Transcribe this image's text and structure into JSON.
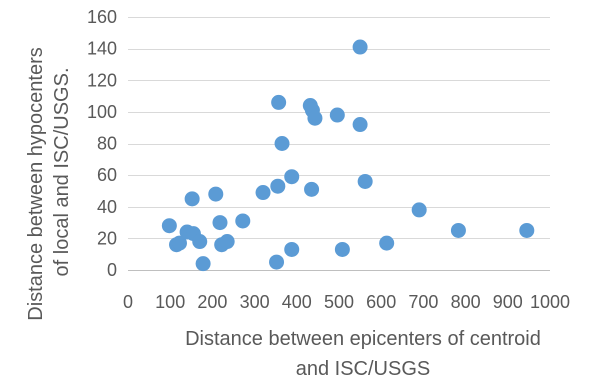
{
  "chart_data": {
    "type": "scatter",
    "title": "",
    "xlabel": [
      "Distance between epicenters of centroid",
      "and ISC/USGS"
    ],
    "ylabel": [
      "Distance between hypocenters",
      "of local and ISC/USGS."
    ],
    "xlim": [
      0,
      1000
    ],
    "ylim": [
      0,
      160
    ],
    "x_ticks": [
      0,
      100,
      200,
      300,
      400,
      500,
      600,
      700,
      800,
      900,
      1000
    ],
    "y_ticks": [
      0,
      20,
      40,
      60,
      80,
      100,
      120,
      140,
      160
    ],
    "x_tick_labels": [
      "0",
      "100",
      "200",
      "300",
      "400",
      "500",
      "600",
      "700",
      "800",
      "900",
      "1000"
    ],
    "y_tick_labels": [
      "0",
      "20",
      "40",
      "60",
      "80",
      "100",
      "120",
      "140",
      "160"
    ],
    "grid": "horizontal",
    "legend": "none",
    "marker_color": "#5b9bd5",
    "series": [
      {
        "points": [
          {
            "x": 98,
            "y": 28
          },
          {
            "x": 115,
            "y": 16
          },
          {
            "x": 122,
            "y": 17
          },
          {
            "x": 140,
            "y": 24
          },
          {
            "x": 152,
            "y": 45
          },
          {
            "x": 155,
            "y": 23
          },
          {
            "x": 170,
            "y": 18
          },
          {
            "x": 178,
            "y": 4
          },
          {
            "x": 208,
            "y": 48
          },
          {
            "x": 218,
            "y": 30
          },
          {
            "x": 222,
            "y": 16
          },
          {
            "x": 235,
            "y": 18
          },
          {
            "x": 272,
            "y": 31
          },
          {
            "x": 320,
            "y": 49
          },
          {
            "x": 352,
            "y": 5
          },
          {
            "x": 355,
            "y": 53
          },
          {
            "x": 357,
            "y": 106
          },
          {
            "x": 365,
            "y": 80
          },
          {
            "x": 388,
            "y": 59
          },
          {
            "x": 388,
            "y": 13
          },
          {
            "x": 432,
            "y": 104
          },
          {
            "x": 435,
            "y": 51
          },
          {
            "x": 437,
            "y": 101
          },
          {
            "x": 443,
            "y": 96
          },
          {
            "x": 496,
            "y": 98
          },
          {
            "x": 508,
            "y": 13
          },
          {
            "x": 550,
            "y": 141
          },
          {
            "x": 550,
            "y": 92
          },
          {
            "x": 562,
            "y": 56
          },
          {
            "x": 613,
            "y": 17
          },
          {
            "x": 690,
            "y": 38
          },
          {
            "x": 783,
            "y": 25
          },
          {
            "x": 945,
            "y": 25
          }
        ]
      }
    ]
  }
}
